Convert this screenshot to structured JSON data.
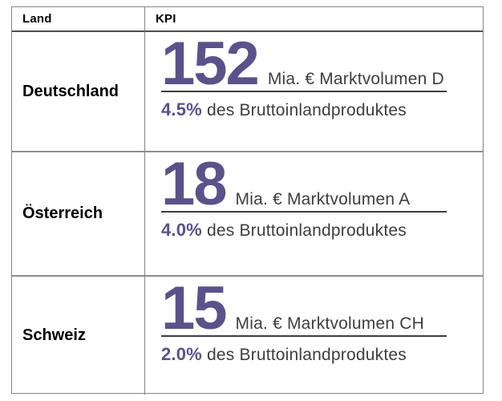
{
  "chart_data": {
    "type": "table",
    "columns": [
      "Land",
      "KPI"
    ],
    "rows": [
      {
        "land": "Deutschland",
        "value": "152",
        "value_num": 152,
        "unit": "Mia. € Marktvolumen D",
        "pct": "4.5%",
        "pct_num": 4.5,
        "pct_label": "des Bruttoinlandproduktes"
      },
      {
        "land": "Österreich",
        "value": "18",
        "value_num": 18,
        "unit": "Mia. € Marktvolumen A",
        "pct": "4.0%",
        "pct_num": 4.0,
        "pct_label": "des Bruttoinlandproduktes"
      },
      {
        "land": "Schweiz",
        "value": "15",
        "value_num": 15,
        "unit": "Mia. € Marktvolumen CH",
        "pct": "2.0%",
        "pct_num": 2.0,
        "pct_label": "des Bruttoinlandproduktes"
      }
    ]
  },
  "header": {
    "land": "Land",
    "kpi": "KPI"
  },
  "colors": {
    "accent_purple": "#5a528a",
    "text_dark": "#3e3e3e",
    "border_gray": "#848484",
    "header_border": "#4f4f4f"
  }
}
